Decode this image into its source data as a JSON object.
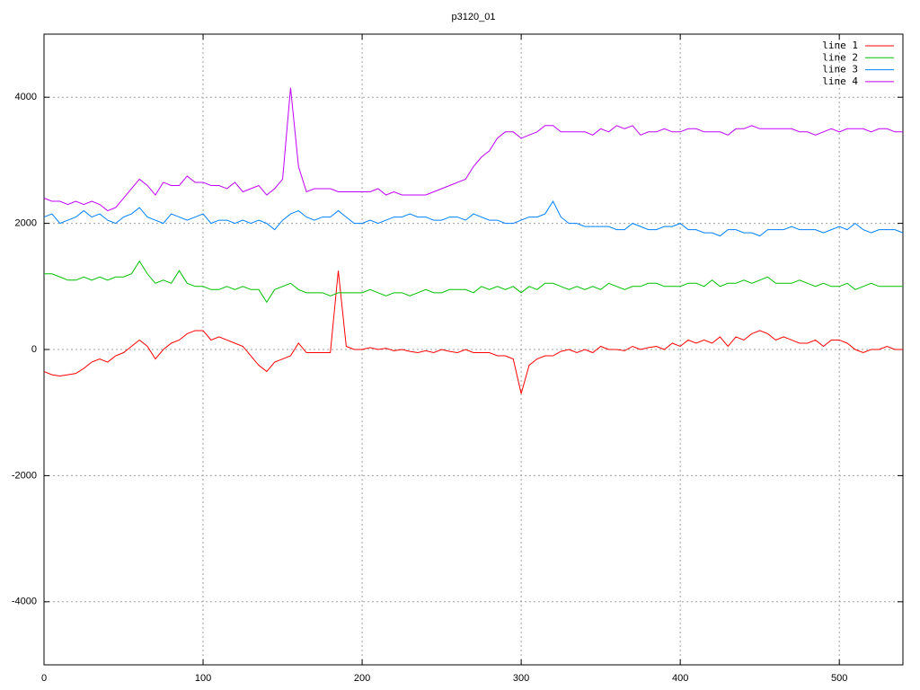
{
  "chart_data": {
    "type": "line",
    "title": "p3120_01",
    "x": [
      0,
      5,
      10,
      15,
      20,
      25,
      30,
      35,
      40,
      45,
      50,
      55,
      60,
      65,
      70,
      75,
      80,
      85,
      90,
      95,
      100,
      105,
      110,
      115,
      120,
      125,
      130,
      135,
      140,
      145,
      150,
      155,
      160,
      165,
      170,
      175,
      180,
      185,
      190,
      195,
      200,
      205,
      210,
      215,
      220,
      225,
      230,
      235,
      240,
      245,
      250,
      255,
      260,
      265,
      270,
      275,
      280,
      285,
      290,
      295,
      300,
      305,
      310,
      315,
      320,
      325,
      330,
      335,
      340,
      345,
      350,
      355,
      360,
      365,
      370,
      375,
      380,
      385,
      390,
      395,
      400,
      405,
      410,
      415,
      420,
      425,
      430,
      435,
      440,
      445,
      450,
      455,
      460,
      465,
      470,
      475,
      480,
      485,
      490,
      495,
      500,
      505,
      510,
      515,
      520,
      525,
      530,
      535,
      540
    ],
    "series": [
      {
        "name": "line 1",
        "color": "#ff0000",
        "values": [
          -350,
          -400,
          -420,
          -400,
          -380,
          -300,
          -200,
          -150,
          -200,
          -100,
          -50,
          50,
          150,
          50,
          -150,
          0,
          100,
          150,
          250,
          300,
          300,
          150,
          200,
          150,
          100,
          50,
          -100,
          -250,
          -350,
          -200,
          -150,
          -100,
          100,
          -50,
          -50,
          -50,
          -50,
          1250,
          50,
          0,
          0,
          30,
          0,
          20,
          -20,
          0,
          -30,
          -50,
          -20,
          -50,
          0,
          -30,
          -50,
          0,
          -50,
          -50,
          -50,
          -100,
          -100,
          -150,
          -700,
          -250,
          -150,
          -100,
          -100,
          -30,
          0,
          -50,
          0,
          -50,
          50,
          0,
          0,
          -20,
          50,
          0,
          30,
          50,
          0,
          100,
          50,
          150,
          100,
          150,
          100,
          200,
          50,
          200,
          150,
          250,
          300,
          250,
          150,
          200,
          150,
          100,
          100,
          150,
          50,
          150,
          150,
          100,
          0,
          -50,
          0,
          0,
          50,
          0,
          0
        ]
      },
      {
        "name": "line 2",
        "color": "#00c000",
        "values": [
          1200,
          1200,
          1150,
          1100,
          1100,
          1150,
          1100,
          1150,
          1100,
          1150,
          1150,
          1200,
          1400,
          1200,
          1050,
          1100,
          1050,
          1250,
          1050,
          1000,
          1000,
          950,
          950,
          1000,
          950,
          1000,
          950,
          950,
          750,
          950,
          1000,
          1050,
          950,
          900,
          900,
          900,
          850,
          900,
          900,
          900,
          900,
          950,
          900,
          850,
          900,
          900,
          850,
          900,
          950,
          900,
          900,
          950,
          950,
          950,
          900,
          1000,
          950,
          1000,
          950,
          1000,
          900,
          1000,
          950,
          1050,
          1050,
          1000,
          950,
          1000,
          950,
          1000,
          950,
          1050,
          1000,
          950,
          1000,
          1000,
          1050,
          1050,
          1000,
          1000,
          1000,
          1050,
          1050,
          1000,
          1100,
          1000,
          1050,
          1050,
          1100,
          1050,
          1100,
          1150,
          1050,
          1050,
          1050,
          1100,
          1050,
          1000,
          1050,
          1000,
          1000,
          1050,
          950,
          1000,
          1050,
          1000,
          1000,
          1000,
          1000
        ]
      },
      {
        "name": "line 3",
        "color": "#0080ff",
        "values": [
          2100,
          2150,
          2000,
          2050,
          2100,
          2200,
          2100,
          2150,
          2050,
          2000,
          2100,
          2150,
          2250,
          2100,
          2050,
          2000,
          2150,
          2100,
          2050,
          2100,
          2150,
          2000,
          2050,
          2050,
          2000,
          2050,
          2000,
          2050,
          2000,
          1900,
          2050,
          2150,
          2200,
          2100,
          2050,
          2100,
          2100,
          2200,
          2100,
          2000,
          2000,
          2050,
          2000,
          2050,
          2100,
          2100,
          2150,
          2100,
          2100,
          2050,
          2050,
          2100,
          2100,
          2050,
          2150,
          2100,
          2050,
          2050,
          2000,
          2000,
          2050,
          2100,
          2100,
          2150,
          2350,
          2100,
          2000,
          2000,
          1950,
          1950,
          1950,
          1950,
          1900,
          1900,
          2000,
          1950,
          1900,
          1900,
          1950,
          1950,
          2000,
          1900,
          1900,
          1850,
          1850,
          1800,
          1900,
          1900,
          1850,
          1850,
          1800,
          1900,
          1900,
          1900,
          1950,
          1900,
          1900,
          1900,
          1850,
          1900,
          1950,
          1900,
          2000,
          1900,
          1850,
          1900,
          1900,
          1900,
          1850
        ]
      },
      {
        "name": "line 4",
        "color": "#c000ff",
        "values": [
          2400,
          2350,
          2350,
          2300,
          2350,
          2300,
          2350,
          2300,
          2200,
          2250,
          2400,
          2550,
          2700,
          2600,
          2450,
          2650,
          2600,
          2600,
          2750,
          2650,
          2650,
          2600,
          2600,
          2550,
          2650,
          2500,
          2550,
          2600,
          2450,
          2550,
          2700,
          4150,
          2900,
          2500,
          2550,
          2550,
          2550,
          2500,
          2500,
          2500,
          2500,
          2500,
          2550,
          2450,
          2500,
          2450,
          2450,
          2450,
          2450,
          2500,
          2550,
          2600,
          2650,
          2700,
          2900,
          3050,
          3150,
          3350,
          3450,
          3450,
          3350,
          3400,
          3450,
          3550,
          3550,
          3450,
          3450,
          3450,
          3450,
          3400,
          3500,
          3450,
          3550,
          3500,
          3550,
          3400,
          3450,
          3450,
          3500,
          3450,
          3450,
          3500,
          3500,
          3450,
          3450,
          3450,
          3400,
          3500,
          3500,
          3550,
          3500,
          3500,
          3500,
          3500,
          3500,
          3450,
          3450,
          3400,
          3450,
          3500,
          3450,
          3500,
          3500,
          3500,
          3450,
          3500,
          3500,
          3450,
          3450
        ]
      }
    ],
    "xlim": [
      0,
      540
    ],
    "xticks": [
      0,
      100,
      200,
      300,
      400,
      500
    ],
    "ylim": [
      -5000,
      5000
    ],
    "yticks": [
      -4000,
      -2000,
      0,
      2000,
      4000
    ],
    "grid": true,
    "legend": "top-right"
  }
}
